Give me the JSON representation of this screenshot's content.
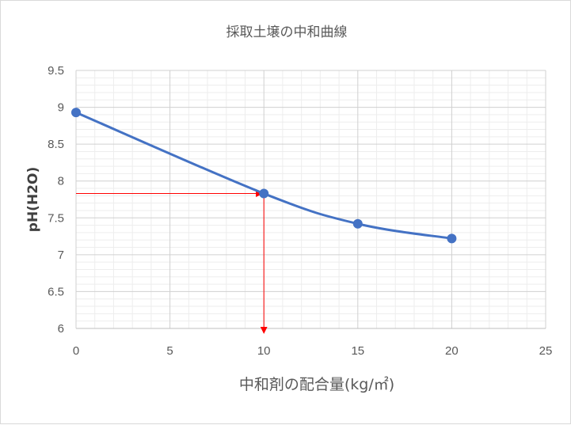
{
  "chart_data": {
    "type": "scatter",
    "title": "採取土壌の中和曲線",
    "xlabel": "中和剤の配合量(kg/㎡)",
    "ylabel": "pH(H2O)",
    "xlim": [
      0,
      25
    ],
    "ylim": [
      6,
      9.5
    ],
    "x_ticks": [
      "0",
      "5",
      "10",
      "15",
      "20",
      "25"
    ],
    "y_ticks": [
      "6",
      "6.5",
      "7",
      "7.5",
      "8",
      "8.5",
      "9",
      "9.5"
    ],
    "grid": true,
    "series": [
      {
        "x": [
          0,
          10,
          15,
          20
        ],
        "y": [
          8.93,
          7.83,
          7.42,
          7.22
        ],
        "smooth": true,
        "color": "#4472c4"
      }
    ],
    "annotations": [
      {
        "type": "arrow",
        "from": [
          0,
          7.83
        ],
        "to": [
          10,
          7.83
        ],
        "color": "#ff0000"
      },
      {
        "type": "arrow",
        "from": [
          10,
          7.83
        ],
        "to": [
          10,
          6
        ],
        "color": "#ff0000"
      }
    ]
  }
}
